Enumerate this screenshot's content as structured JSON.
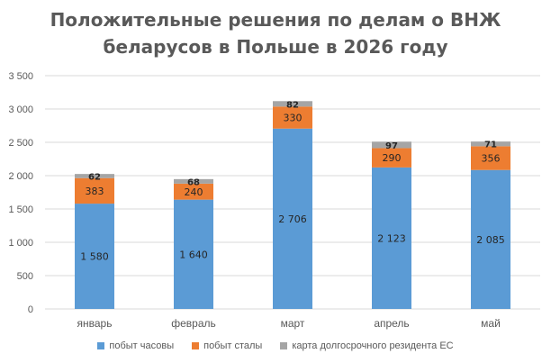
{
  "chart_data": {
    "type": "bar",
    "stacked": true,
    "title_line1": "Положительные решения по делам о ВНЖ",
    "title_line2": "беларусов в Польше в 2026 году",
    "categories": [
      "январь",
      "февраль",
      "март",
      "апрель",
      "май"
    ],
    "series": [
      {
        "name": "побыт часовы",
        "color": "#5B9BD5",
        "values": [
          1580,
          1640,
          2706,
          2123,
          2085
        ],
        "labels": [
          "1 580",
          "1 640",
          "2 706",
          "2 123",
          "2 085"
        ]
      },
      {
        "name": "побыт сталы",
        "color": "#ED7D31",
        "values": [
          383,
          240,
          330,
          290,
          356
        ],
        "labels": [
          "383",
          "240",
          "330",
          "290",
          "356"
        ]
      },
      {
        "name": "карта долгосрочного резидента ЕС",
        "color": "#A5A5A5",
        "values": [
          62,
          68,
          82,
          97,
          71
        ],
        "labels": [
          "62",
          "68",
          "82",
          "97",
          "71"
        ]
      }
    ],
    "ylim": [
      0,
      3500
    ],
    "yticks": [
      0,
      500,
      1000,
      1500,
      2000,
      2500,
      3000,
      3500
    ],
    "ytick_labels": [
      "0",
      "500",
      "1 000",
      "1 500",
      "2 000",
      "2 500",
      "3 000",
      "3 500"
    ],
    "grid": true,
    "legend_position": "bottom"
  }
}
